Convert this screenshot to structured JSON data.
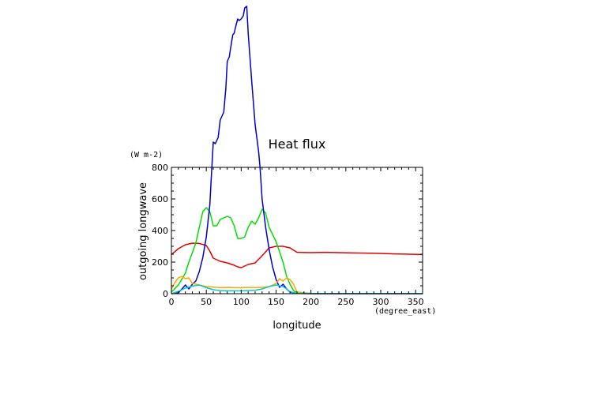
{
  "chart_data": {
    "type": "line",
    "title": "Heat flux",
    "ylabel": "outgoing longwave",
    "yunit": "(W m-2)",
    "xlabel": "longitude",
    "xunit": "(degree_east)",
    "xlim": [
      0,
      360
    ],
    "ylim": [
      0,
      800
    ],
    "xticks": [
      "0",
      "50",
      "100",
      "150",
      "200",
      "250",
      "300",
      "350"
    ],
    "xtick_values": [
      0,
      50,
      100,
      150,
      200,
      250,
      300,
      350
    ],
    "yticks": [
      "0",
      "200",
      "400",
      "600",
      "800"
    ],
    "ytick_values": [
      0,
      200,
      400,
      600,
      800
    ],
    "grid": false,
    "series": [
      {
        "color": "#e00000",
        "points": [
          [
            0,
            248
          ],
          [
            10,
            285
          ],
          [
            20,
            310
          ],
          [
            30,
            320
          ],
          [
            40,
            318
          ],
          [
            50,
            305
          ],
          [
            55,
            270
          ],
          [
            60,
            225
          ],
          [
            70,
            205
          ],
          [
            80,
            195
          ],
          [
            90,
            180
          ],
          [
            95,
            170
          ],
          [
            100,
            165
          ],
          [
            110,
            185
          ],
          [
            120,
            195
          ],
          [
            130,
            240
          ],
          [
            140,
            290
          ],
          [
            150,
            300
          ],
          [
            160,
            300
          ],
          [
            170,
            290
          ],
          [
            180,
            262
          ],
          [
            200,
            260
          ],
          [
            220,
            262
          ],
          [
            240,
            260
          ],
          [
            260,
            258
          ],
          [
            280,
            257
          ],
          [
            300,
            255
          ],
          [
            320,
            252
          ],
          [
            340,
            250
          ],
          [
            360,
            248
          ]
        ]
      },
      {
        "color": "#00dd00",
        "points": [
          [
            0,
            10
          ],
          [
            10,
            55
          ],
          [
            20,
            130
          ],
          [
            25,
            200
          ],
          [
            30,
            260
          ],
          [
            35,
            320
          ],
          [
            40,
            420
          ],
          [
            45,
            520
          ],
          [
            50,
            545
          ],
          [
            55,
            520
          ],
          [
            60,
            430
          ],
          [
            65,
            430
          ],
          [
            70,
            470
          ],
          [
            80,
            490
          ],
          [
            85,
            480
          ],
          [
            90,
            430
          ],
          [
            95,
            350
          ],
          [
            100,
            350
          ],
          [
            105,
            360
          ],
          [
            110,
            420
          ],
          [
            115,
            460
          ],
          [
            120,
            440
          ],
          [
            125,
            480
          ],
          [
            130,
            535
          ],
          [
            135,
            510
          ],
          [
            140,
            420
          ],
          [
            150,
            330
          ],
          [
            160,
            200
          ],
          [
            165,
            110
          ],
          [
            170,
            60
          ],
          [
            175,
            20
          ],
          [
            180,
            5
          ],
          [
            200,
            2
          ],
          [
            250,
            1
          ],
          [
            300,
            1
          ],
          [
            360,
            1
          ]
        ]
      },
      {
        "color": "#0000cc",
        "points": [
          [
            0,
            0
          ],
          [
            10,
            5
          ],
          [
            15,
            30
          ],
          [
            20,
            55
          ],
          [
            25,
            30
          ],
          [
            30,
            60
          ],
          [
            35,
            80
          ],
          [
            40,
            140
          ],
          [
            45,
            230
          ],
          [
            50,
            360
          ],
          [
            55,
            560
          ],
          [
            58,
            800
          ]
        ]
      },
      {
        "color": "#0000cc",
        "points": [
          [
            127,
            800
          ],
          [
            130,
            600
          ],
          [
            135,
            420
          ],
          [
            140,
            280
          ],
          [
            145,
            170
          ],
          [
            150,
            90
          ],
          [
            155,
            40
          ],
          [
            160,
            60
          ],
          [
            165,
            30
          ],
          [
            170,
            10
          ],
          [
            180,
            2
          ],
          [
            200,
            0
          ],
          [
            360,
            0
          ]
        ]
      },
      {
        "color": "#ffa500",
        "points": [
          [
            0,
            30
          ],
          [
            5,
            70
          ],
          [
            10,
            100
          ],
          [
            15,
            110
          ],
          [
            20,
            95
          ],
          [
            25,
            100
          ],
          [
            30,
            65
          ],
          [
            40,
            55
          ],
          [
            50,
            45
          ],
          [
            60,
            42
          ],
          [
            70,
            38
          ],
          [
            80,
            40
          ],
          [
            90,
            38
          ],
          [
            100,
            38
          ],
          [
            110,
            40
          ],
          [
            120,
            38
          ],
          [
            130,
            40
          ],
          [
            140,
            45
          ],
          [
            150,
            65
          ],
          [
            155,
            95
          ],
          [
            160,
            80
          ],
          [
            165,
            100
          ],
          [
            170,
            90
          ],
          [
            175,
            60
          ],
          [
            180,
            10
          ],
          [
            200,
            2
          ],
          [
            360,
            1
          ]
        ]
      },
      {
        "color": "#00cccc",
        "points": [
          [
            0,
            0
          ],
          [
            10,
            15
          ],
          [
            20,
            35
          ],
          [
            30,
            48
          ],
          [
            40,
            55
          ],
          [
            50,
            38
          ],
          [
            60,
            25
          ],
          [
            70,
            20
          ],
          [
            80,
            18
          ],
          [
            90,
            18
          ],
          [
            100,
            18
          ],
          [
            110,
            20
          ],
          [
            120,
            22
          ],
          [
            130,
            30
          ],
          [
            140,
            45
          ],
          [
            150,
            55
          ],
          [
            160,
            45
          ],
          [
            165,
            30
          ],
          [
            170,
            12
          ],
          [
            180,
            3
          ],
          [
            200,
            1
          ],
          [
            360,
            1
          ]
        ]
      }
    ]
  }
}
